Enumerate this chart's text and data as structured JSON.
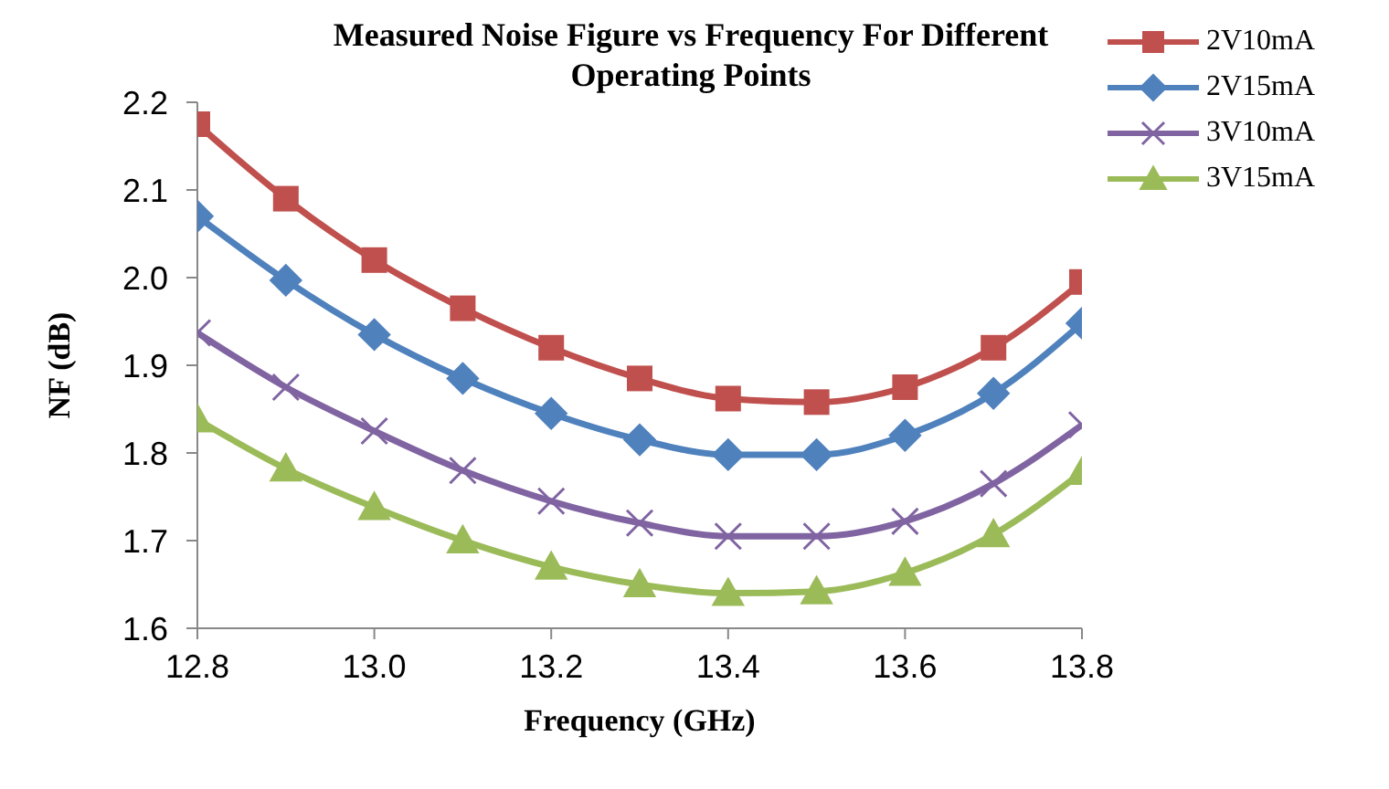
{
  "chart_data": {
    "type": "line",
    "title": "Measured Noise Figure vs Frequency For Different Operating Points",
    "xlabel": "Frequency (GHz)",
    "ylabel": "NF (dB)",
    "x": [
      12.8,
      12.9,
      13.0,
      13.1,
      13.2,
      13.3,
      13.4,
      13.5,
      13.6,
      13.7,
      13.8
    ],
    "xlim": [
      12.8,
      13.8
    ],
    "xticks": [
      12.8,
      "13.0",
      13.2,
      13.4,
      13.6,
      13.8
    ],
    "ylim": [
      1.6,
      2.2
    ],
    "yticks": [
      1.6,
      1.7,
      1.8,
      1.9,
      "2.0",
      2.1,
      2.2
    ],
    "grid": false,
    "legend": "top right",
    "series": [
      {
        "name": "2V10mA",
        "color": "#c0504d",
        "marker": "square",
        "values": [
          2.175,
          2.09,
          2.02,
          1.965,
          1.92,
          1.885,
          1.862,
          1.858,
          1.875,
          1.92,
          1.995
        ]
      },
      {
        "name": "2V15mA",
        "color": "#4f81bd",
        "marker": "diamond",
        "values": [
          2.07,
          1.997,
          1.935,
          1.885,
          1.845,
          1.815,
          1.798,
          1.798,
          1.82,
          1.868,
          1.948
        ]
      },
      {
        "name": "3V10mA",
        "color": "#8064a2",
        "marker": "cross",
        "values": [
          1.937,
          1.875,
          1.825,
          1.78,
          1.745,
          1.72,
          1.705,
          1.705,
          1.722,
          1.765,
          1.832
        ]
      },
      {
        "name": "3V15mA",
        "color": "#9bbb59",
        "marker": "triangle",
        "values": [
          1.838,
          1.782,
          1.738,
          1.7,
          1.67,
          1.65,
          1.64,
          1.642,
          1.663,
          1.707,
          1.778
        ]
      }
    ]
  }
}
